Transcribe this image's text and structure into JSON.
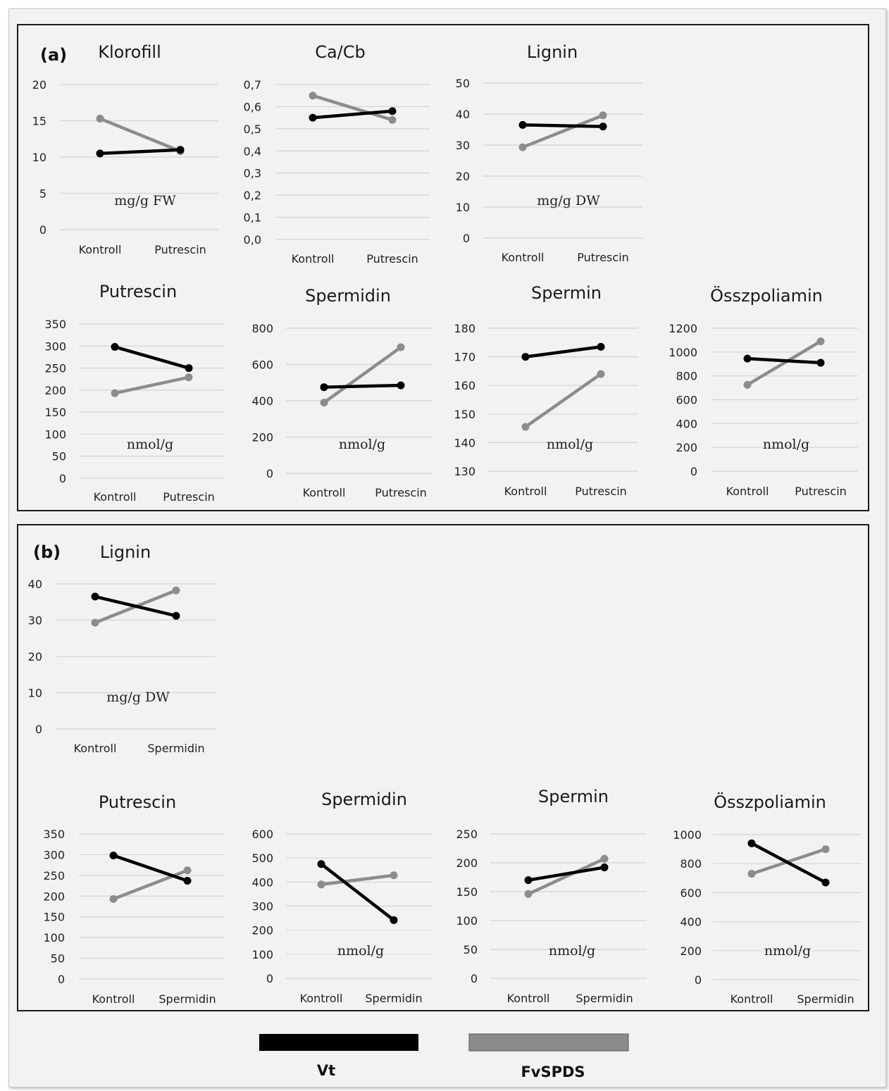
{
  "figure": {
    "panel_labels": [
      "(a)",
      "(b)"
    ],
    "colors": {
      "Vt": "#000000",
      "FvSPDS": "#8c8c8c"
    },
    "legend": [
      {
        "name": "Vt",
        "color": "#000000"
      },
      {
        "name": "FvSPDS",
        "color": "#8c8c8c"
      }
    ]
  },
  "chart_data": [
    {
      "panel": "a",
      "type": "line",
      "title": "Klorofill",
      "unit": "mg/g FW",
      "categories": [
        "Kontroll",
        "Putrescin"
      ],
      "yticks": [
        "0",
        "5",
        "10",
        "15",
        "20"
      ],
      "ylim": [
        0,
        20
      ],
      "grid": true,
      "series": [
        {
          "name": "Vt",
          "values": [
            10.5,
            11.0
          ]
        },
        {
          "name": "FvSPDS",
          "values": [
            15.3,
            10.8
          ]
        }
      ]
    },
    {
      "panel": "a",
      "type": "line",
      "title": "Ca/Cb",
      "unit": "",
      "categories": [
        "Kontroll",
        "Putrescin"
      ],
      "yticks": [
        "0,0",
        "0,1",
        "0,2",
        "0,3",
        "0,4",
        "0,5",
        "0,6",
        "0,7"
      ],
      "ylim": [
        0,
        0.7
      ],
      "grid": true,
      "series": [
        {
          "name": "Vt",
          "values": [
            0.55,
            0.58
          ]
        },
        {
          "name": "FvSPDS",
          "values": [
            0.65,
            0.54
          ]
        }
      ]
    },
    {
      "panel": "a",
      "type": "line",
      "title": "Lignin",
      "unit": "mg/g DW",
      "categories": [
        "Kontroll",
        "Putrescin"
      ],
      "yticks": [
        "0",
        "10",
        "20",
        "30",
        "40",
        "50"
      ],
      "ylim": [
        0,
        50
      ],
      "grid": true,
      "series": [
        {
          "name": "Vt",
          "values": [
            36.5,
            36.0
          ]
        },
        {
          "name": "FvSPDS",
          "values": [
            29.3,
            39.6
          ]
        }
      ]
    },
    {
      "panel": "a",
      "type": "line",
      "title": "Putrescin",
      "unit": "nmol/g",
      "categories": [
        "Kontroll",
        "Putrescin"
      ],
      "yticks": [
        "0",
        "50",
        "100",
        "150",
        "200",
        "250",
        "300",
        "350"
      ],
      "ylim": [
        0,
        350
      ],
      "grid": true,
      "series": [
        {
          "name": "Vt",
          "values": [
            298,
            250
          ]
        },
        {
          "name": "FvSPDS",
          "values": [
            193,
            229
          ]
        }
      ]
    },
    {
      "panel": "a",
      "type": "line",
      "title": "Spermidin",
      "unit": "nmol/g",
      "categories": [
        "Kontroll",
        "Putrescin"
      ],
      "yticks": [
        "0",
        "200",
        "400",
        "600",
        "800"
      ],
      "ylim": [
        0,
        800
      ],
      "grid": true,
      "series": [
        {
          "name": "Vt",
          "values": [
            475,
            485
          ]
        },
        {
          "name": "FvSPDS",
          "values": [
            390,
            695
          ]
        }
      ]
    },
    {
      "panel": "a",
      "type": "line",
      "title": "Spermin",
      "unit": "nmol/g",
      "categories": [
        "Kontroll",
        "Putrescin"
      ],
      "yticks": [
        "130",
        "140",
        "150",
        "160",
        "170",
        "180"
      ],
      "ylim": [
        130,
        180
      ],
      "grid": true,
      "series": [
        {
          "name": "Vt",
          "values": [
            170,
            173.5
          ]
        },
        {
          "name": "FvSPDS",
          "values": [
            145.5,
            164
          ]
        }
      ]
    },
    {
      "panel": "a",
      "type": "line",
      "title": "Összpoliamin",
      "unit": "nmol/g",
      "categories": [
        "Kontroll",
        "Putrescin"
      ],
      "yticks": [
        "0",
        "200",
        "400",
        "600",
        "800",
        "1000",
        "1200"
      ],
      "ylim": [
        0,
        1200
      ],
      "grid": true,
      "series": [
        {
          "name": "Vt",
          "values": [
            945,
            910
          ]
        },
        {
          "name": "FvSPDS",
          "values": [
            725,
            1090
          ]
        }
      ]
    },
    {
      "panel": "b",
      "type": "line",
      "title": "Lignin",
      "unit": "mg/g DW",
      "categories": [
        "Kontroll",
        "Spermidin"
      ],
      "yticks": [
        "0",
        "10",
        "20",
        "30",
        "40"
      ],
      "ylim": [
        0,
        40
      ],
      "grid": true,
      "series": [
        {
          "name": "Vt",
          "values": [
            36.5,
            31.2
          ]
        },
        {
          "name": "FvSPDS",
          "values": [
            29.3,
            38.2
          ]
        }
      ]
    },
    {
      "panel": "b",
      "type": "line",
      "title": "Putrescin",
      "unit": "",
      "categories": [
        "Kontroll",
        "Spermidin"
      ],
      "yticks": [
        "0",
        "50",
        "100",
        "150",
        "200",
        "250",
        "300",
        "350"
      ],
      "ylim": [
        0,
        350
      ],
      "grid": true,
      "series": [
        {
          "name": "Vt",
          "values": [
            298,
            237
          ]
        },
        {
          "name": "FvSPDS",
          "values": [
            193,
            262
          ]
        }
      ]
    },
    {
      "panel": "b",
      "type": "line",
      "title": "Spermidin",
      "unit": "nmol/g",
      "categories": [
        "Kontroll",
        "Spermidin"
      ],
      "yticks": [
        "0",
        "100",
        "200",
        "300",
        "400",
        "500",
        "600"
      ],
      "ylim": [
        0,
        600
      ],
      "grid": true,
      "series": [
        {
          "name": "Vt",
          "values": [
            475,
            242
          ]
        },
        {
          "name": "FvSPDS",
          "values": [
            390,
            428
          ]
        }
      ]
    },
    {
      "panel": "b",
      "type": "line",
      "title": "Spermin",
      "unit": "nmol/g",
      "categories": [
        "Kontroll",
        "Spermidin"
      ],
      "yticks": [
        "0",
        "50",
        "100",
        "150",
        "200",
        "250"
      ],
      "ylim": [
        0,
        250
      ],
      "grid": true,
      "series": [
        {
          "name": "Vt",
          "values": [
            170,
            192
          ]
        },
        {
          "name": "FvSPDS",
          "values": [
            146,
            207
          ]
        }
      ]
    },
    {
      "panel": "b",
      "type": "line",
      "title": "Összpoliamin",
      "unit": "nmol/g",
      "categories": [
        "Kontroll",
        "Spermidin"
      ],
      "yticks": [
        "0",
        "200",
        "400",
        "600",
        "800",
        "1000"
      ],
      "ylim": [
        0,
        1000
      ],
      "grid": true,
      "series": [
        {
          "name": "Vt",
          "values": [
            940,
            670
          ]
        },
        {
          "name": "FvSPDS",
          "values": [
            730,
            900
          ]
        }
      ]
    }
  ]
}
